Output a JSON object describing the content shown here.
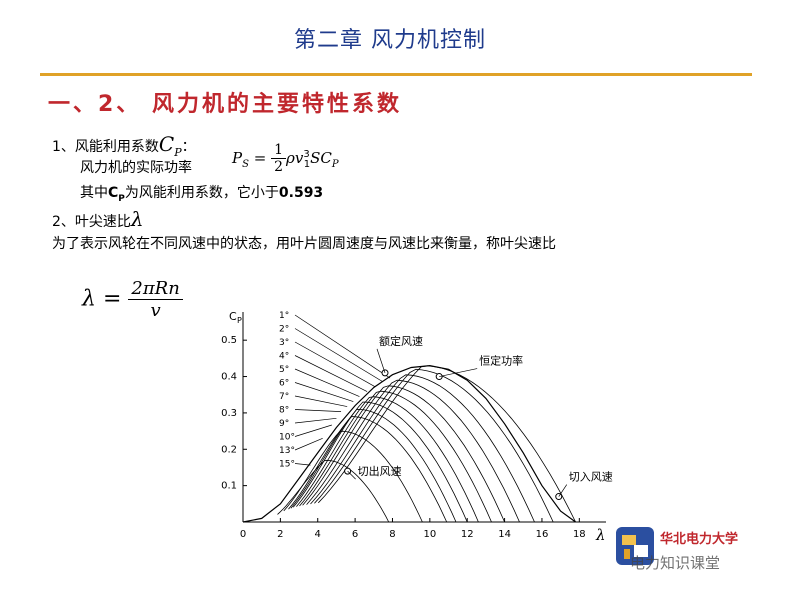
{
  "chapter_title": "第二章  风力机控制",
  "section_heading": "一、2、 风力机的主要特性系数",
  "item1": {
    "label": "1、风能利用系数",
    "symbol": "C",
    "symbol_sub": "P",
    "colon": "：",
    "power_label": "风力机的实际功率",
    "formula_lhs": "P",
    "formula_lhs_sub": "S",
    "formula_eq": "=",
    "formula_num": "1",
    "formula_den": "2",
    "formula_rest": "ρv",
    "formula_rest_sup": "3",
    "formula_rest_sub": "1",
    "formula_tail": "SC",
    "formula_tail_sub": "P",
    "note_prefix": "其中",
    "note_c": "C",
    "note_c_sub": "P",
    "note_suffix": "为风能利用系数，它小于",
    "note_value": "0.593"
  },
  "item2": {
    "label": "2、叶尖速比",
    "symbol": "λ",
    "description": "为了表示风轮在不同风速中的状态，用叶片圆周速度与风速比来衡量，称叶尖速比",
    "formula_lhs": "λ",
    "formula_eq": "=",
    "formula_num": "2πRn",
    "formula_den": "v"
  },
  "chart_data": {
    "type": "line",
    "xlabel": "λ",
    "ylabel": "C",
    "ylabel_sub": "P",
    "xlim": [
      0,
      19
    ],
    "ylim": [
      0,
      0.55
    ],
    "x_ticks": [
      0,
      2,
      4,
      6,
      8,
      10,
      12,
      14,
      16,
      18
    ],
    "y_ticks": [
      0.1,
      0.2,
      0.3,
      0.4,
      0.5
    ],
    "y_tick_labels": [
      "0.1",
      "0.2",
      "0.3",
      "0.4",
      "0.5"
    ],
    "series": [
      {
        "name": "1°",
        "peak_x": 9.6,
        "peak_y": 0.43,
        "end_x": 17.8
      },
      {
        "name": "2°",
        "peak_x": 9.1,
        "peak_y": 0.42,
        "end_x": 16.6
      },
      {
        "name": "3°",
        "peak_x": 8.6,
        "peak_y": 0.405,
        "end_x": 15.6
      },
      {
        "name": "4°",
        "peak_x": 8.1,
        "peak_y": 0.39,
        "end_x": 14.8
      },
      {
        "name": "5°",
        "peak_x": 7.6,
        "peak_y": 0.375,
        "end_x": 14.0
      },
      {
        "name": "6°",
        "peak_x": 7.2,
        "peak_y": 0.36,
        "end_x": 13.3
      },
      {
        "name": "7°",
        "peak_x": 6.8,
        "peak_y": 0.345,
        "end_x": 12.6
      },
      {
        "name": "8°",
        "peak_x": 6.4,
        "peak_y": 0.33,
        "end_x": 12.0
      },
      {
        "name": "9°",
        "peak_x": 6.1,
        "peak_y": 0.31,
        "end_x": 11.4
      },
      {
        "name": "10°",
        "peak_x": 5.8,
        "peak_y": 0.29,
        "end_x": 10.9
      },
      {
        "name": "13°",
        "peak_x": 5.2,
        "peak_y": 0.25,
        "end_x": 9.6
      },
      {
        "name": "15°",
        "peak_x": 4.4,
        "peak_y": 0.17,
        "end_x": 7.8
      }
    ],
    "envelope": {
      "x": [
        0,
        1,
        2,
        3,
        4,
        5,
        6,
        7,
        8,
        9,
        10,
        11,
        12,
        13,
        14,
        15,
        16,
        17,
        17.8
      ],
      "y": [
        0,
        0.01,
        0.05,
        0.12,
        0.19,
        0.26,
        0.32,
        0.37,
        0.405,
        0.425,
        0.43,
        0.42,
        0.39,
        0.34,
        0.27,
        0.19,
        0.1,
        0.03,
        0
      ]
    },
    "annotations": [
      {
        "text": "额定风速",
        "x": 7.6,
        "y": 0.41
      },
      {
        "text": "恒定功率",
        "x": 10.5,
        "y": 0.4
      },
      {
        "text": "切出风速",
        "x": 5.6,
        "y": 0.14
      },
      {
        "text": "切入风速",
        "x": 16.9,
        "y": 0.07
      }
    ]
  },
  "logo": {
    "text": "华北电力大学"
  },
  "watermark": "电力知识课堂"
}
